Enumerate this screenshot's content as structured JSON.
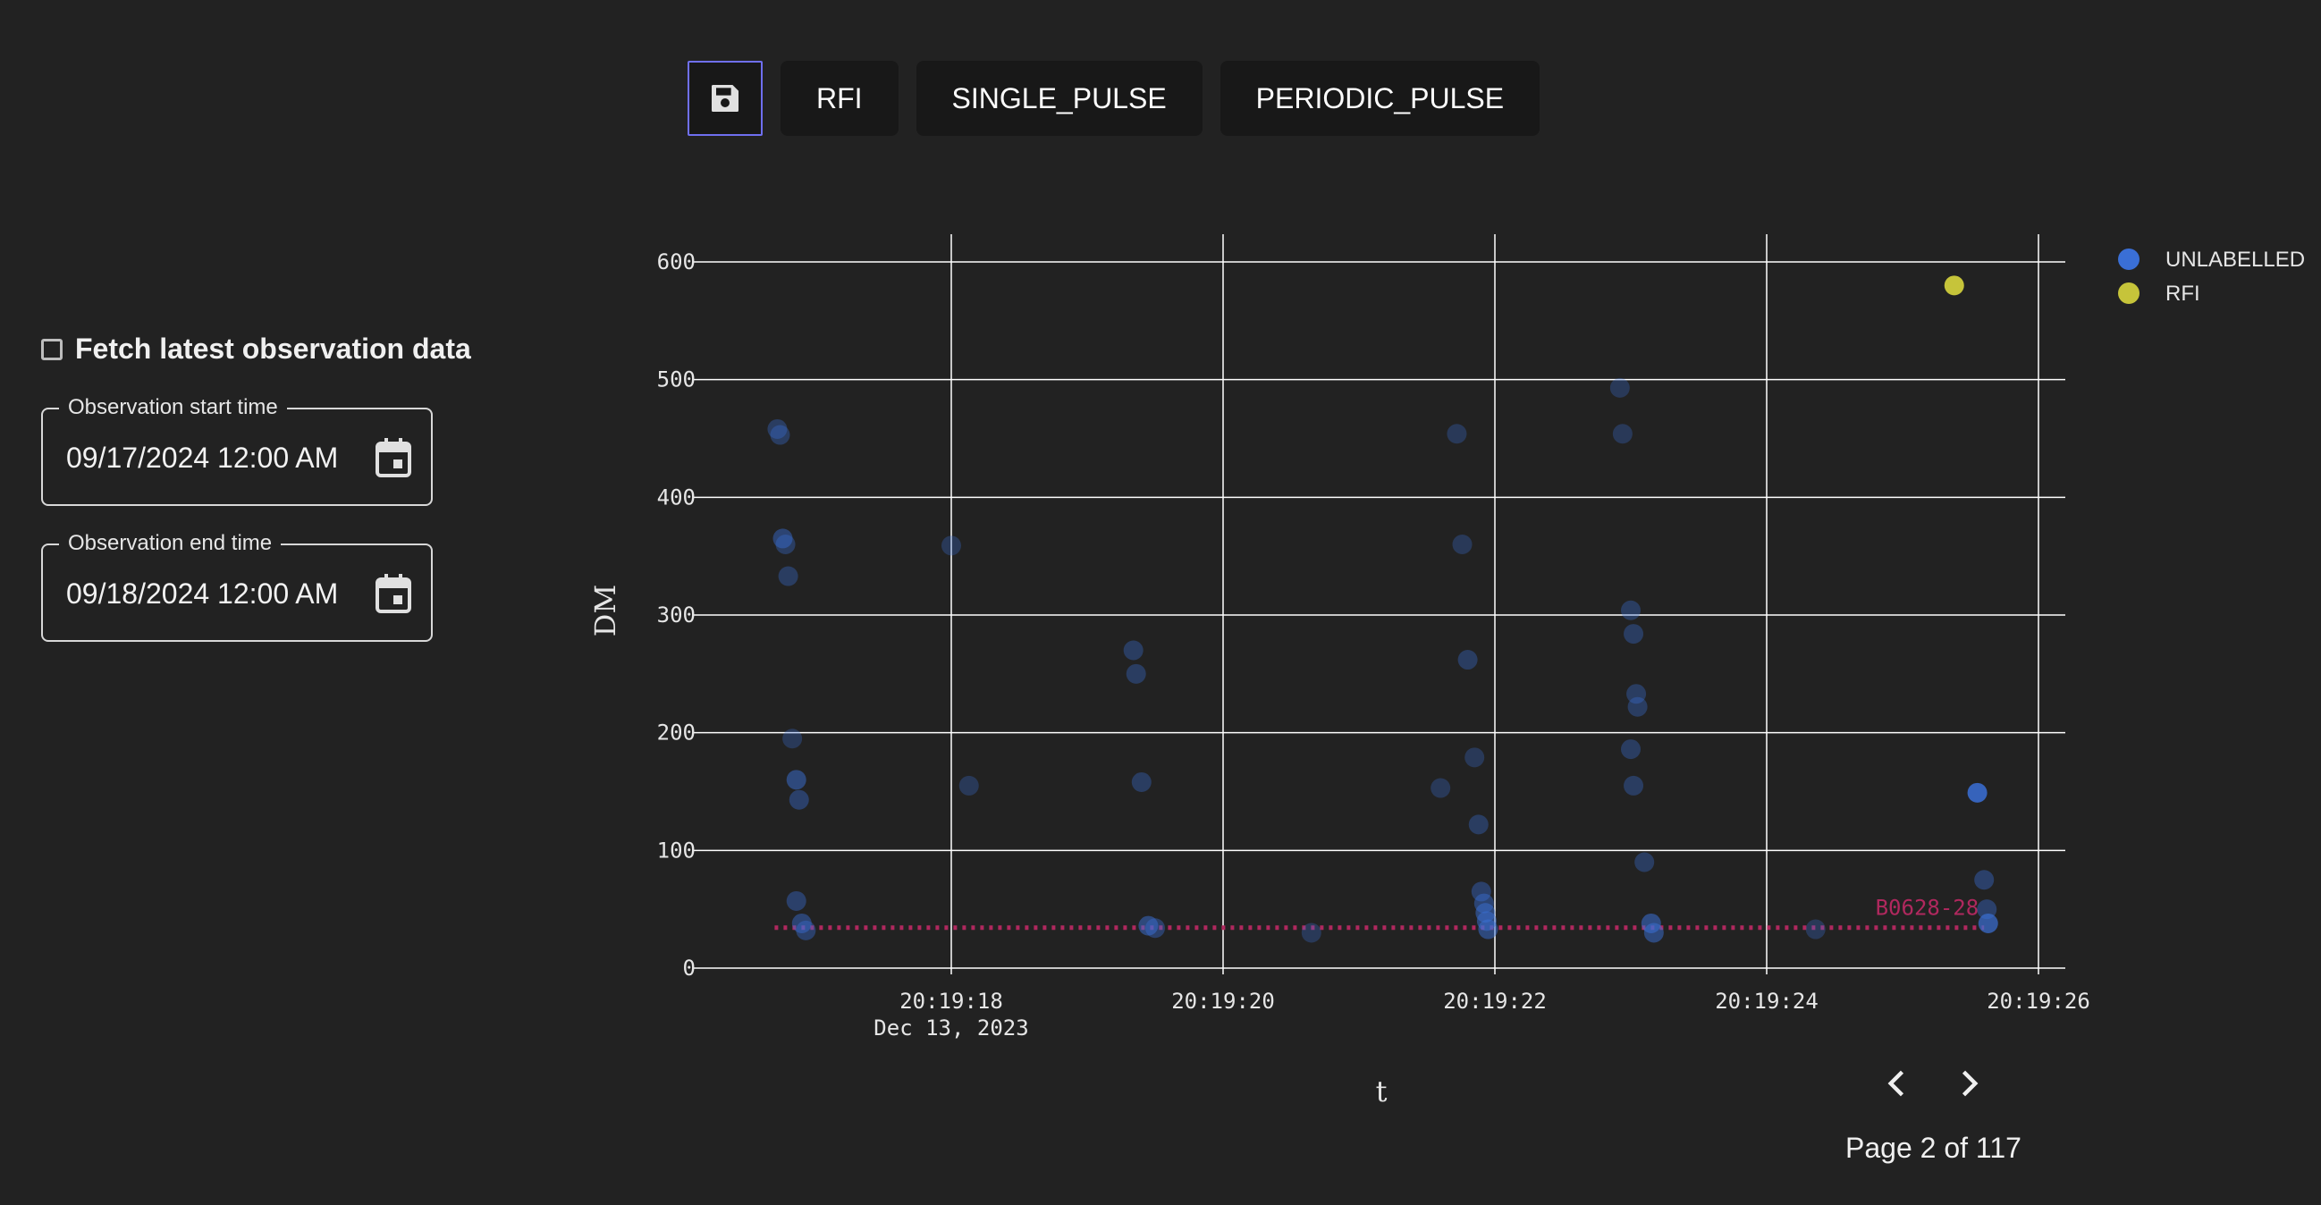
{
  "toolbar": {
    "save_icon": "floppy-disk-icon",
    "buttons": [
      "RFI",
      "SINGLE_PULSE",
      "PERIODIC_PULSE"
    ]
  },
  "sidebar": {
    "fetch_label": "Fetch latest observation data",
    "fetch_checked": false,
    "start": {
      "label": "Observation start time",
      "value": "09/17/2024 12:00 AM",
      "icon": "calendar-icon"
    },
    "end": {
      "label": "Observation end time",
      "value": "09/18/2024 12:00 AM",
      "icon": "calendar-icon"
    }
  },
  "pager": {
    "prev_icon": "chevron-left-icon",
    "next_icon": "chevron-right-icon",
    "label": "Page 2 of 117"
  },
  "chart_data": {
    "type": "scatter",
    "xlabel": "t",
    "ylabel": "DM",
    "x_ticks": [
      "20:19:18",
      "20:19:20",
      "20:19:22",
      "20:19:24",
      "20:19:26"
    ],
    "x_tick_date": "Dec 13, 2023",
    "x_range": [
      16.3,
      26.2
    ],
    "y_ticks": [
      0,
      100,
      200,
      300,
      400,
      500,
      600
    ],
    "ylim": [
      0,
      600
    ],
    "grid": true,
    "legend_position": "top-right",
    "colors": {
      "UNLABELLED": "#3a6fd6",
      "RFI": "#c6c43a",
      "annotation": "#b0285e"
    },
    "series": [
      {
        "name": "UNLABELLED",
        "points": [
          [
            16.72,
            458,
            0.35
          ],
          [
            16.74,
            453,
            0.35
          ],
          [
            16.76,
            365,
            0.45
          ],
          [
            16.78,
            360,
            0.35
          ],
          [
            16.8,
            333,
            0.35
          ],
          [
            16.83,
            195,
            0.3
          ],
          [
            16.86,
            160,
            0.5
          ],
          [
            16.88,
            143,
            0.4
          ],
          [
            16.86,
            57,
            0.4
          ],
          [
            16.9,
            38,
            0.45
          ],
          [
            16.93,
            32,
            0.4
          ],
          [
            18.0,
            359,
            0.3
          ],
          [
            18.13,
            155,
            0.3
          ],
          [
            19.34,
            270,
            0.35
          ],
          [
            19.36,
            250,
            0.35
          ],
          [
            19.4,
            158,
            0.35
          ],
          [
            19.45,
            36,
            0.5
          ],
          [
            19.5,
            34,
            0.4
          ],
          [
            20.65,
            30,
            0.3
          ],
          [
            21.6,
            153,
            0.3
          ],
          [
            21.72,
            454,
            0.3
          ],
          [
            21.76,
            360,
            0.3
          ],
          [
            21.8,
            262,
            0.35
          ],
          [
            21.85,
            179,
            0.3
          ],
          [
            21.88,
            122,
            0.35
          ],
          [
            21.9,
            65,
            0.4
          ],
          [
            21.92,
            55,
            0.45
          ],
          [
            21.93,
            47,
            0.5
          ],
          [
            21.94,
            40,
            0.5
          ],
          [
            21.95,
            33,
            0.5
          ],
          [
            22.92,
            493,
            0.3
          ],
          [
            22.94,
            454,
            0.3
          ],
          [
            23.0,
            304,
            0.35
          ],
          [
            23.02,
            284,
            0.35
          ],
          [
            23.04,
            233,
            0.35
          ],
          [
            23.05,
            222,
            0.35
          ],
          [
            23.0,
            186,
            0.35
          ],
          [
            23.02,
            155,
            0.35
          ],
          [
            23.1,
            90,
            0.35
          ],
          [
            23.15,
            38,
            0.55
          ],
          [
            23.17,
            30,
            0.5
          ],
          [
            24.36,
            33,
            0.3
          ],
          [
            25.55,
            149,
            0.85
          ],
          [
            25.6,
            75,
            0.4
          ],
          [
            25.62,
            50,
            0.4
          ],
          [
            25.63,
            38,
            0.7
          ]
        ]
      },
      {
        "name": "RFI",
        "points": [
          [
            25.38,
            580,
            1.0
          ]
        ]
      }
    ],
    "reference_line": {
      "label": "B0628-28",
      "y": 34.4,
      "x_start": 16.7,
      "x_end": 25.6
    }
  }
}
